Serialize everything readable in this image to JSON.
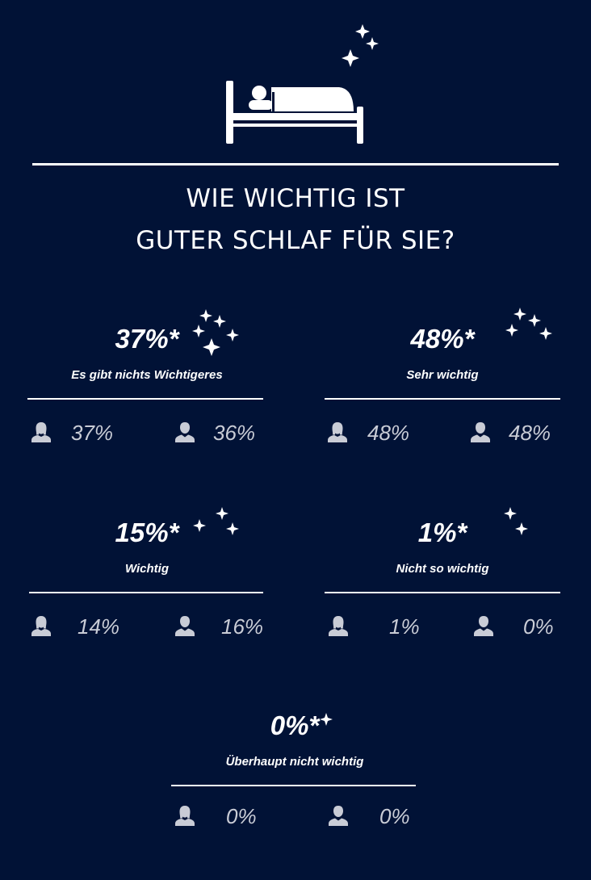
{
  "title_lines": [
    "WIE WICHTIG IST",
    "GUTER SCHLAF FÜR SIE?"
  ],
  "colors": {
    "background": "#011236",
    "text": "#ffffff",
    "gender_text": "#c9ccd6"
  },
  "icons": {
    "header": "bed-icon",
    "decoration": "sparkle-icon",
    "female": "female-user-icon",
    "male": "male-user-icon"
  },
  "chart_data": {
    "type": "table",
    "title": "WIE WICHTIG IST GUTER SCHLAF FÜR SIE?",
    "categories": [
      {
        "label": "Es gibt nichts Wichtigeres",
        "total_display": "37%*",
        "female_display": "37%",
        "male_display": "36%",
        "total": 37,
        "female": 37,
        "male": 36
      },
      {
        "label": "Sehr wichtig",
        "total_display": "48%*",
        "female_display": "48%",
        "male_display": "48%",
        "total": 48,
        "female": 48,
        "male": 48
      },
      {
        "label": "Wichtig",
        "total_display": "15%*",
        "female_display": "14%",
        "male_display": "16%",
        "total": 15,
        "female": 14,
        "male": 16
      },
      {
        "label": "Nicht so wichtig",
        "total_display": "1%*",
        "female_display": "1%",
        "male_display": "0%",
        "total": 1,
        "female": 1,
        "male": 0
      },
      {
        "label": "Überhaupt nicht wichtig",
        "total_display": "0%*",
        "female_display": "0%",
        "male_display": "0%",
        "total": 0,
        "female": 0,
        "male": 0
      }
    ]
  }
}
